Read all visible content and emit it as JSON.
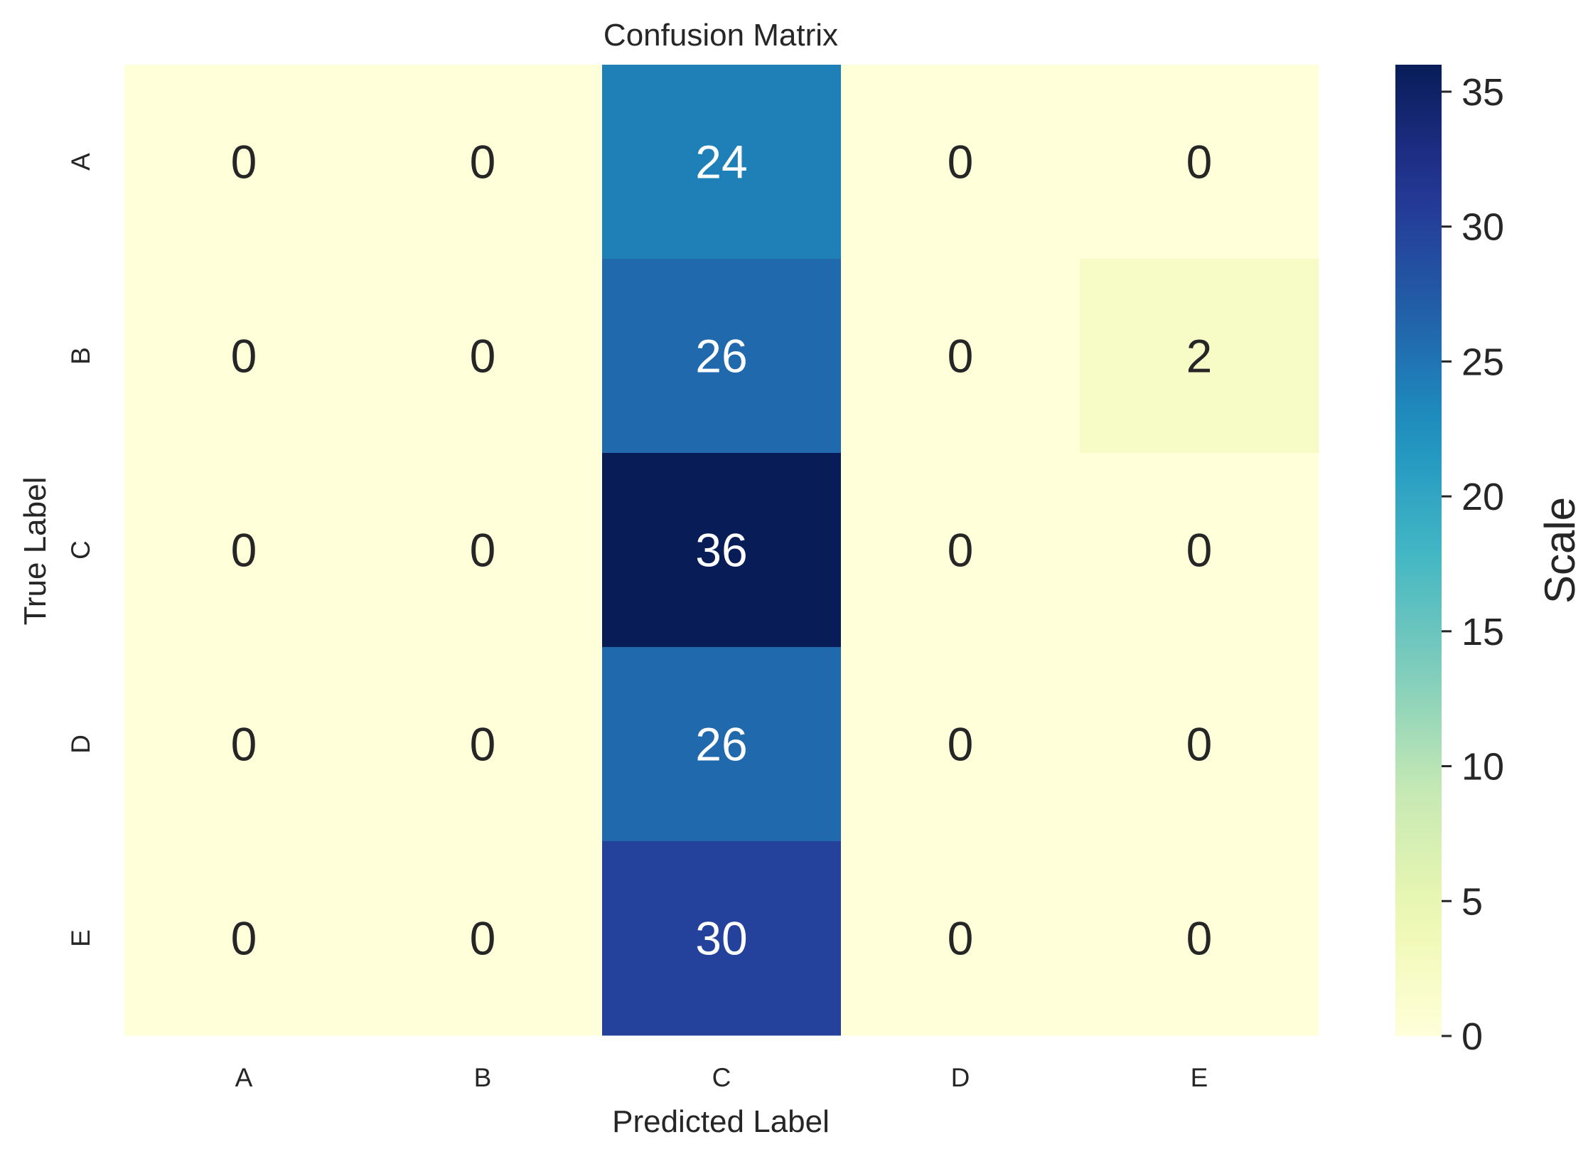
{
  "chart_data": {
    "type": "heatmap",
    "title": "Confusion Matrix",
    "xlabel": "Predicted Label",
    "ylabel": "True Label",
    "x_categories": [
      "A",
      "B",
      "C",
      "D",
      "E"
    ],
    "y_categories": [
      "A",
      "B",
      "C",
      "D",
      "E"
    ],
    "values": [
      [
        0,
        0,
        24,
        0,
        0
      ],
      [
        0,
        0,
        26,
        0,
        2
      ],
      [
        0,
        0,
        36,
        0,
        0
      ],
      [
        0,
        0,
        26,
        0,
        0
      ],
      [
        0,
        0,
        30,
        0,
        0
      ]
    ],
    "colormap": "YlGnBu",
    "colorbar": {
      "label": "Scale",
      "range": [
        0,
        36
      ],
      "ticks": [
        "0",
        "5",
        "10",
        "15",
        "20",
        "25",
        "30",
        "35"
      ]
    },
    "annotation_text_dark": "#262626",
    "annotation_text_light": "#ffffff"
  }
}
